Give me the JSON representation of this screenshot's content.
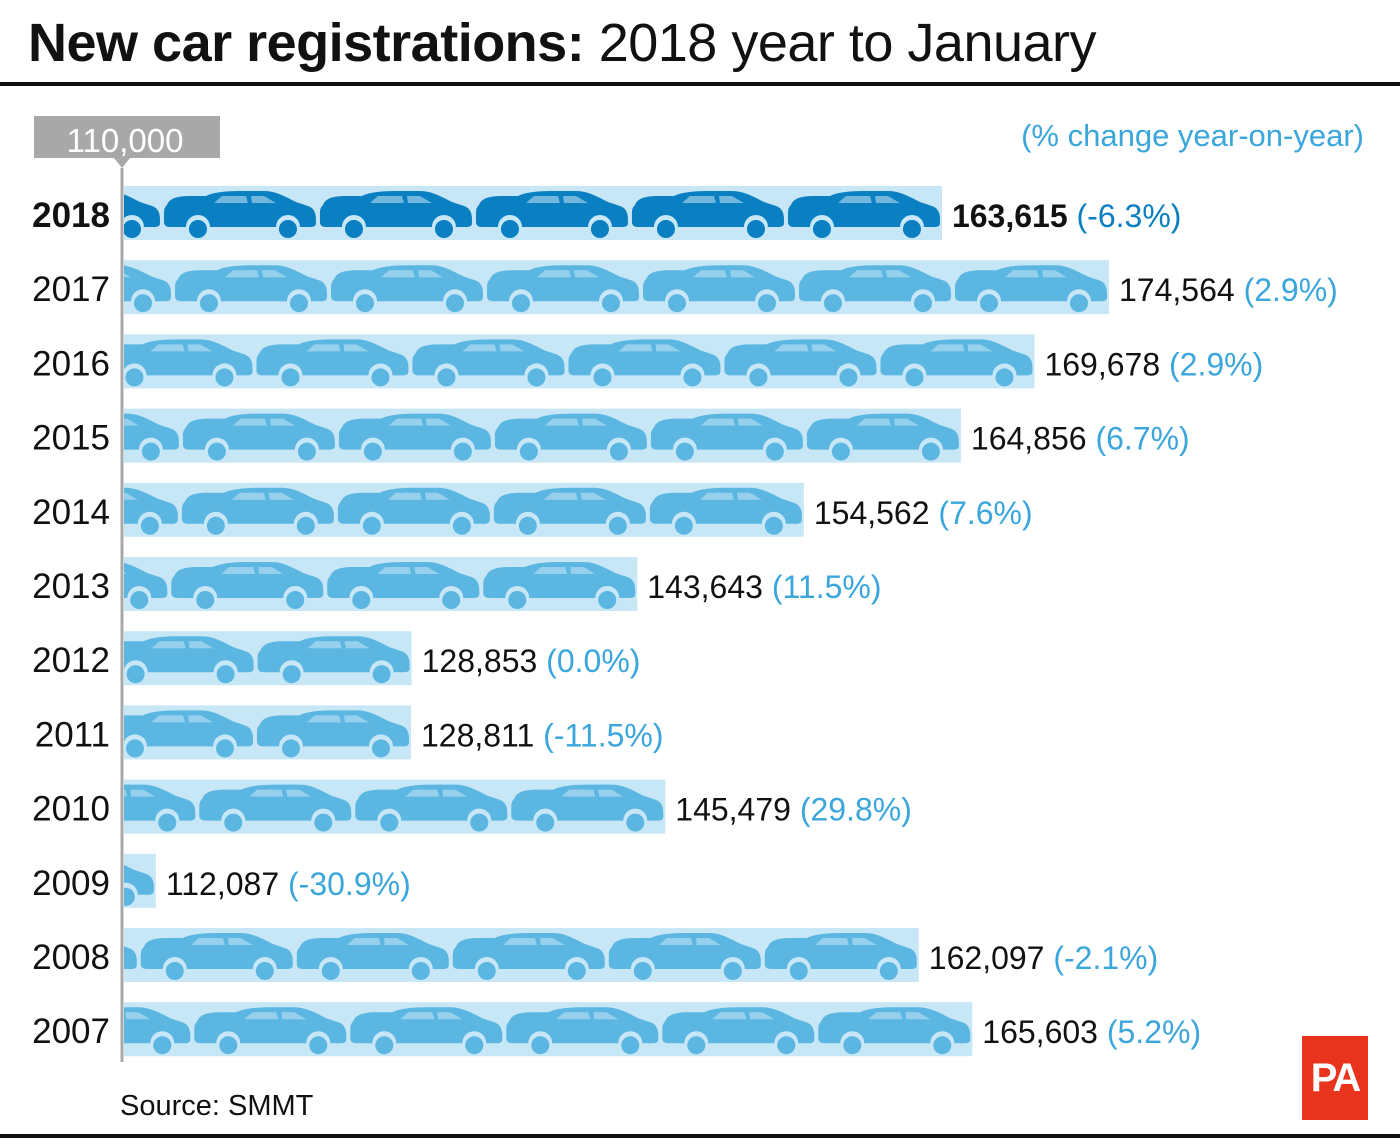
{
  "title_bold": "New car registrations:",
  "title_rest": "2018 year to January",
  "source": "Source: SMMT",
  "logo": "PA",
  "colors": {
    "bar_bg": "#c7e6f6",
    "car": "#5bb7e2",
    "car_highlight": "#0a7fc1",
    "pct": "#3aa6dc",
    "axis": "#a8a8a8"
  },
  "chart_data": {
    "type": "bar",
    "orientation": "horizontal",
    "title": "New car registrations: 2018 year to January",
    "axis_start_label": "110,000",
    "note": "(% change year-on-year)",
    "xlim": [
      110000,
      180000
    ],
    "highlight_category": "2018",
    "categories": [
      "2018",
      "2017",
      "2016",
      "2015",
      "2014",
      "2013",
      "2012",
      "2011",
      "2010",
      "2009",
      "2008",
      "2007"
    ],
    "values": [
      163615,
      174564,
      169678,
      164856,
      154562,
      143643,
      128853,
      128811,
      145479,
      112087,
      162097,
      165603
    ],
    "value_labels": [
      "163,615",
      "174,564",
      "169,678",
      "164,856",
      "154,562",
      "143,643",
      "128,853",
      "128,811",
      "145,479",
      "112,087",
      "162,097",
      "165,603"
    ],
    "pct_labels": [
      "(-6.3%)",
      "(2.9%)",
      "(2.9%)",
      "(6.7%)",
      "(7.6%)",
      "(11.5%)",
      "(0.0%)",
      "(-11.5%)",
      "(29.8%)",
      "(-30.9%)",
      "(-2.1%)",
      "(5.2%)"
    ]
  }
}
